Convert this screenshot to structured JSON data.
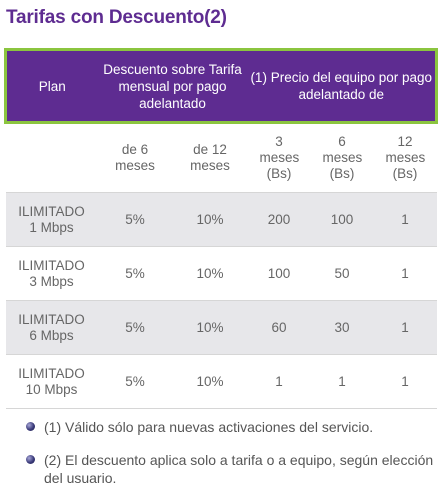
{
  "title": "Tarifas con Descuento(2)",
  "table": {
    "header": {
      "plan": "Plan",
      "discount": "Descuento sobre Tarifa mensual por pago adelantado",
      "equipment": "(1) Precio del equipo por pago adelantado de"
    },
    "subheader": [
      "de 6 meses",
      "de 12 meses",
      "3 meses (Bs)",
      "6 meses (Bs)",
      "12 meses (Bs)"
    ],
    "rows": [
      {
        "plan_line1": "ILIMITADO",
        "plan_line2": "1 Mbps",
        "d6": "5%",
        "d12": "10%",
        "e3": "200",
        "e6": "100",
        "e12": "1"
      },
      {
        "plan_line1": "ILIMITADO",
        "plan_line2": "3 Mbps",
        "d6": "5%",
        "d12": "10%",
        "e3": "100",
        "e6": "50",
        "e12": "1"
      },
      {
        "plan_line1": "ILIMITADO",
        "plan_line2": "6 Mbps",
        "d6": "5%",
        "d12": "10%",
        "e3": "60",
        "e6": "30",
        "e12": "1"
      },
      {
        "plan_line1": "ILIMITADO",
        "plan_line2": "10 Mbps",
        "d6": "5%",
        "d12": "10%",
        "e3": "1",
        "e6": "1",
        "e12": "1"
      }
    ]
  },
  "notes": [
    "(1) Válido sólo para nuevas activaciones del servicio.",
    "(2) El descuento aplica solo a tarifa o a equipo, según elección del usuario."
  ],
  "colors": {
    "brand_purple": "#5e2c91",
    "accent_green": "#8bc53f",
    "row_shade": "#e7e7ea"
  }
}
